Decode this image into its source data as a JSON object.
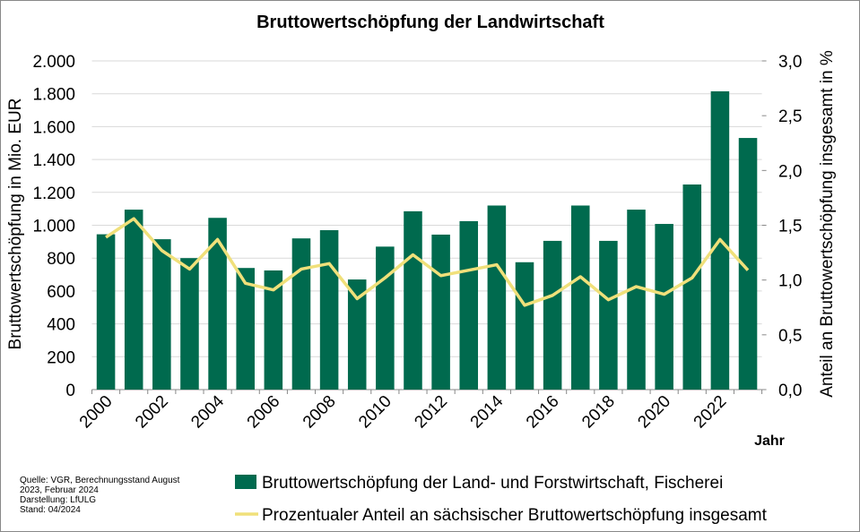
{
  "chart_data": {
    "type": "bar_line",
    "title": "Bruttowertschöpfung der Landwirtschaft",
    "x_label": "Jahr",
    "y_label": "Bruttowertschöpfung  in Mio. EUR",
    "y2_label": "Anteil an Bruttowertschöpfung  insgesamt in %",
    "categories": [
      "2000",
      null,
      "2002",
      null,
      "2004",
      null,
      "2006",
      null,
      "2008",
      null,
      "2010",
      null,
      "2012",
      null,
      "2014",
      null,
      "2016",
      null,
      "2018",
      null,
      "2020",
      null,
      "2022",
      null
    ],
    "series": [
      {
        "name": "Bruttowertschöpfung der Land- und Forstwirtschaft, Fischerei",
        "type": "bar",
        "color": "#006a4e",
        "values": [
          945,
          1095,
          915,
          800,
          1045,
          740,
          725,
          920,
          970,
          670,
          870,
          1085,
          943,
          1025,
          1120,
          775,
          905,
          1120,
          905,
          1095,
          1008,
          1248,
          1815,
          1531
        ]
      },
      {
        "name": "Prozentualer Anteil an sächsischer Bruttowertschöpfung insgesamt",
        "type": "line",
        "axis": "y2",
        "color": "#f0e07a",
        "values": [
          1.39,
          1.56,
          1.27,
          1.1,
          1.37,
          0.97,
          0.91,
          1.1,
          1.15,
          0.83,
          1.02,
          1.23,
          1.04,
          1.09,
          1.14,
          0.77,
          0.86,
          1.03,
          0.82,
          0.94,
          0.87,
          1.02,
          1.37,
          1.09
        ]
      }
    ],
    "ylim": [
      0,
      2000
    ],
    "yticks": [
      0,
      200,
      400,
      600,
      800,
      {
        "value": 1000,
        "label": "1.000"
      },
      {
        "value": 1200,
        "label": "1.200"
      },
      {
        "value": 1400,
        "label": "1.400"
      },
      {
        "value": 1600,
        "label": "1.600"
      },
      {
        "value": 1800,
        "label": "1.800"
      },
      {
        "value": 2000,
        "label": "2.000"
      }
    ],
    "y2lim": [
      0,
      3
    ],
    "y2ticks": [
      {
        "value": 0,
        "label": "0,0"
      },
      {
        "value": 0.5,
        "label": "0,5"
      },
      {
        "value": 1,
        "label": "1,0"
      },
      {
        "value": 1.5,
        "label": "1,5"
      },
      {
        "value": 2,
        "label": "2,0"
      },
      {
        "value": 2.5,
        "label": "2,5"
      },
      {
        "value": 3,
        "label": "3,0"
      }
    ],
    "grid": true,
    "legend": "bottom",
    "source": [
      "Quelle: VGR, Berechnungsstand August",
      "2023, Februar 2024",
      "Darstellung: LfULG",
      "Stand: 04/2024"
    ]
  }
}
